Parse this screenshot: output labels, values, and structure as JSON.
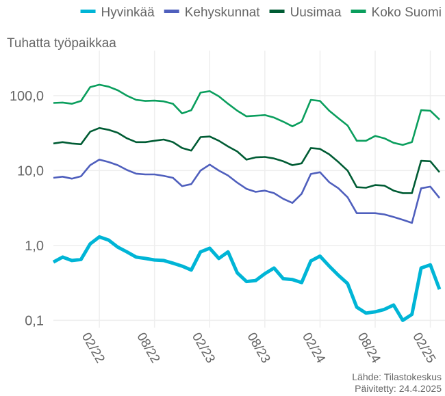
{
  "chart_data": {
    "type": "line",
    "y_axis_label": "Tuhatta työpaikkaa",
    "source": "Lähde: Tilastokeskus",
    "updated": "Päivitetty: 24.4.2025",
    "log_scale": true,
    "grid": true,
    "legend": "top",
    "x": [
      "2021-09",
      "2021-10",
      "2021-11",
      "2021-12",
      "2022-01",
      "2022-02",
      "2022-03",
      "2022-04",
      "2022-05",
      "2022-06",
      "2022-07",
      "2022-08",
      "2022-09",
      "2022-10",
      "2022-11",
      "2022-12",
      "2023-01",
      "2023-02",
      "2023-03",
      "2023-04",
      "2023-05",
      "2023-06",
      "2023-07",
      "2023-08",
      "2023-09",
      "2023-10",
      "2023-11",
      "2023-12",
      "2024-01",
      "2024-02",
      "2024-03",
      "2024-04",
      "2024-05",
      "2024-06",
      "2024-07",
      "2024-08",
      "2024-09",
      "2024-10",
      "2024-11",
      "2024-12",
      "2025-01",
      "2025-02",
      "2025-03"
    ],
    "xlim": [
      "2021-09",
      "2025-03"
    ],
    "xticks": [
      {
        "value": "2022-02",
        "label": "02/22"
      },
      {
        "value": "2022-08",
        "label": "08/22"
      },
      {
        "value": "2023-02",
        "label": "02/23"
      },
      {
        "value": "2023-08",
        "label": "08/23"
      },
      {
        "value": "2024-02",
        "label": "02/24"
      },
      {
        "value": "2024-08",
        "label": "08/24"
      },
      {
        "value": "2025-02",
        "label": "02/25"
      }
    ],
    "ylim": [
      0.08,
      400
    ],
    "yticks": [
      {
        "value": 0.1,
        "label": "0,1"
      },
      {
        "value": 1,
        "label": "1,0"
      },
      {
        "value": 10,
        "label": "10,0"
      },
      {
        "value": 100,
        "label": "100,0"
      }
    ],
    "series": [
      {
        "name": "Hyvinkää",
        "color": "#00b5d6",
        "values": [
          0.6,
          0.7,
          0.63,
          0.65,
          1.05,
          1.3,
          1.18,
          0.95,
          0.82,
          0.7,
          0.67,
          0.64,
          0.63,
          0.58,
          0.53,
          0.47,
          0.82,
          0.92,
          0.67,
          0.82,
          0.43,
          0.33,
          0.34,
          0.42,
          0.5,
          0.36,
          0.35,
          0.32,
          0.62,
          0.72,
          0.53,
          0.4,
          0.31,
          0.15,
          0.125,
          0.13,
          0.14,
          0.16,
          0.1,
          0.12,
          0.5,
          0.55,
          0.26
        ]
      },
      {
        "name": "Kehyskunnat",
        "color": "#4f5fbd",
        "values": [
          8,
          8.3,
          7.8,
          8.4,
          11.8,
          14,
          13,
          11.8,
          10.2,
          9.1,
          8.9,
          8.9,
          8.5,
          8,
          6.2,
          6.6,
          10,
          12,
          10,
          8.6,
          6.9,
          5.7,
          5.2,
          5.4,
          5,
          4.2,
          3.7,
          4.9,
          9,
          9.5,
          7,
          5.8,
          4.4,
          2.7,
          2.7,
          2.7,
          2.6,
          2.4,
          2.2,
          2.0,
          5.8,
          6.1,
          4.3
        ]
      },
      {
        "name": "Uusimaa",
        "color": "#005c34",
        "values": [
          23,
          24,
          23,
          22.5,
          33,
          37,
          35,
          32,
          27,
          24,
          24,
          25,
          26,
          24,
          20,
          18.5,
          28,
          28.5,
          25,
          21,
          18,
          14,
          15,
          15.2,
          14.5,
          13.3,
          11.8,
          12.5,
          20,
          19.5,
          16.5,
          13,
          10,
          6,
          5.9,
          6.4,
          6.3,
          5.4,
          5,
          5,
          13.5,
          13.3,
          9.5
        ]
      },
      {
        "name": "Koko Suomi",
        "color": "#0a9e5d",
        "values": [
          80,
          81,
          78,
          85,
          130,
          140,
          132,
          118,
          100,
          88,
          85,
          86,
          84,
          78,
          58,
          64,
          110,
          115,
          98,
          78,
          63,
          53,
          54,
          55,
          51,
          45,
          39,
          45,
          88,
          85,
          63,
          50,
          40,
          25,
          25,
          29,
          27,
          23.5,
          22,
          24,
          64,
          63,
          48
        ]
      }
    ]
  }
}
